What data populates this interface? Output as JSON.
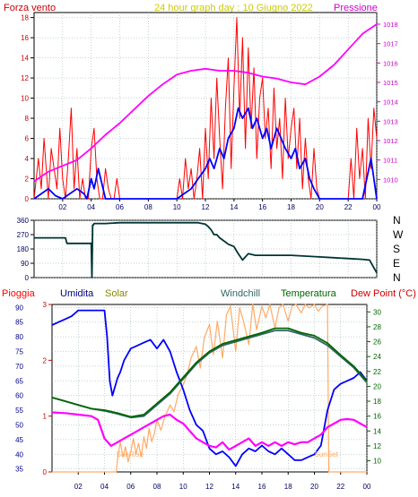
{
  "colors": {
    "background": "#ffffff",
    "plot_background": "#ffffff",
    "wind": "#ff0000",
    "wind_avg": "#0000ff",
    "pressure": "#ff00ff",
    "direction": "#003333",
    "humidity": "#0000ff",
    "solar": "#ffaa66",
    "windchill": "#336666",
    "temperature": "#006600",
    "dewpoint": "#ff00ff",
    "rain": "#ff3333",
    "grid": "#8ca8a8",
    "frame": "#000000"
  },
  "chart_data": [
    {
      "type": "line",
      "title": "24 hour graph day : 10 Giugno 2022",
      "left_label": "Forza vento",
      "right_label": "Pressione",
      "x_ticks": [
        "02",
        "04",
        "06",
        "08",
        "10",
        "12",
        "14",
        "16",
        "18",
        "20",
        "22",
        "00"
      ],
      "x_range": [
        0,
        24
      ],
      "ylim_left": [
        0,
        18.5
      ],
      "y_ticks_left": [
        0,
        2,
        4,
        6,
        8,
        10,
        12,
        14,
        16,
        18
      ],
      "ylim_right": [
        1009,
        1018.6
      ],
      "y_ticks_right": [
        1010,
        1011,
        1012,
        1013,
        1014,
        1015,
        1016,
        1017,
        1018
      ],
      "grid": true,
      "series": [
        {
          "key": "wind_gust",
          "x": [
            0,
            0.3,
            0.5,
            0.7,
            0.9,
            1.0,
            1.2,
            1.4,
            1.6,
            1.8,
            2.0,
            2.2,
            2.4,
            2.6,
            2.8,
            3.0,
            3.2,
            3.4,
            3.6,
            3.8,
            4.0,
            4.2,
            4.4,
            4.6,
            4.8,
            5.0,
            5.2,
            5.4,
            5.6,
            5.8,
            6.0,
            6.2,
            6.5,
            7.0,
            7.5,
            8.0,
            8.5,
            9.0,
            9.5,
            10.0,
            10.2,
            10.4,
            10.6,
            10.8,
            11.0,
            11.2,
            11.4,
            11.6,
            11.8,
            12.0,
            12.2,
            12.4,
            12.6,
            12.8,
            13.0,
            13.2,
            13.4,
            13.6,
            13.8,
            14.0,
            14.2,
            14.4,
            14.6,
            14.8,
            15.0,
            15.2,
            15.4,
            15.6,
            15.8,
            16.0,
            16.2,
            16.4,
            16.6,
            16.8,
            17.0,
            17.2,
            17.4,
            17.6,
            17.8,
            18.0,
            18.2,
            18.4,
            18.6,
            18.8,
            19.0,
            19.2,
            19.4,
            19.6,
            19.8,
            20.0,
            20.5,
            21.0,
            21.5,
            22.0,
            22.2,
            22.4,
            22.6,
            22.8,
            23.0,
            23.2,
            23.4,
            23.6,
            23.8,
            24.0
          ],
          "y": [
            0,
            4,
            1,
            6,
            2,
            0,
            5,
            3,
            1,
            7,
            2,
            0,
            4,
            9,
            1,
            5,
            0,
            2,
            0,
            0,
            5,
            7,
            2,
            0,
            0,
            3,
            1,
            0,
            0,
            2,
            0,
            0,
            0,
            0,
            0,
            0,
            0,
            0,
            0,
            0,
            2,
            0,
            4,
            1,
            3,
            0,
            2,
            5,
            0,
            7,
            2,
            10,
            4,
            12,
            6,
            1,
            9,
            14,
            3,
            11,
            18,
            8,
            16,
            5,
            15,
            7,
            13,
            4,
            10,
            12,
            6,
            9,
            3,
            11,
            5,
            8,
            2,
            10,
            4,
            7,
            9,
            3,
            8,
            1,
            6,
            2,
            0,
            5,
            1,
            0,
            0,
            0,
            0,
            0,
            4,
            0,
            7,
            2,
            5,
            0,
            8,
            3,
            9,
            6
          ]
        },
        {
          "key": "wind_avg",
          "x": [
            0,
            0.5,
            1.0,
            1.5,
            2.0,
            2.5,
            3.0,
            3.5,
            3.7,
            4.0,
            4.2,
            4.5,
            5.0,
            5.5,
            6.0,
            7.0,
            8.0,
            9.0,
            10.0,
            10.5,
            11.0,
            11.5,
            12.0,
            12.3,
            12.6,
            13.0,
            13.3,
            13.6,
            14.0,
            14.3,
            14.6,
            15.0,
            15.3,
            15.6,
            16.0,
            16.3,
            16.6,
            17.0,
            17.3,
            17.6,
            18.0,
            18.3,
            18.6,
            19.0,
            19.3,
            19.6,
            20.0,
            20.5,
            21.0,
            21.5,
            22.0,
            22.5,
            23.0,
            23.3,
            23.6,
            24.0
          ],
          "y": [
            0,
            0.5,
            1,
            0.3,
            0,
            0.5,
            1,
            0.5,
            0,
            2,
            1,
            3,
            0,
            0,
            0,
            0,
            0,
            0,
            0,
            0.5,
            1,
            2,
            3,
            4,
            3,
            5,
            4,
            6,
            7,
            9,
            8,
            9,
            7,
            8,
            6,
            7,
            5,
            7,
            6,
            5,
            4,
            5,
            3,
            4,
            2,
            1,
            0,
            0,
            0,
            0,
            0,
            0,
            0,
            2,
            4,
            0
          ]
        },
        {
          "key": "pressure",
          "x": [
            0,
            1,
            2,
            3,
            4,
            5,
            6,
            7,
            8,
            9,
            10,
            11,
            12,
            13,
            14,
            15,
            16,
            17,
            18,
            19,
            20,
            21,
            22,
            23,
            24
          ],
          "y": [
            1009.9,
            1010.4,
            1010.7,
            1011.0,
            1011.6,
            1012.3,
            1012.9,
            1013.6,
            1014.3,
            1014.9,
            1015.4,
            1015.6,
            1015.7,
            1015.6,
            1015.6,
            1015.5,
            1015.3,
            1015.2,
            1015.0,
            1014.9,
            1015.3,
            1015.9,
            1016.7,
            1017.5,
            1018.0
          ]
        }
      ]
    },
    {
      "type": "line",
      "right_labels": [
        "N",
        "W",
        "S",
        "E",
        "N"
      ],
      "ylim": [
        0,
        360
      ],
      "y_ticks": [
        0,
        90,
        180,
        270,
        360
      ],
      "x_range": [
        0,
        24
      ],
      "grid": true,
      "series": [
        {
          "key": "wind_direction",
          "x": [
            0,
            2.2,
            2.3,
            4.0,
            4.05,
            4.1,
            4.15,
            4.2,
            5.0,
            6.0,
            7.0,
            8.0,
            9.0,
            10.0,
            11.0,
            11.5,
            12.0,
            12.2,
            12.4,
            12.6,
            12.8,
            13.0,
            13.3,
            13.6,
            14.0,
            14.3,
            14.6,
            15.0,
            15.5,
            16.0,
            17.0,
            18.0,
            19.0,
            20.0,
            21.0,
            22.0,
            23.0,
            23.5,
            24.0
          ],
          "y": [
            250,
            250,
            215,
            215,
            0,
            330,
            330,
            340,
            340,
            345,
            345,
            345,
            345,
            345,
            345,
            345,
            335,
            320,
            300,
            270,
            270,
            250,
            230,
            210,
            195,
            150,
            110,
            150,
            140,
            140,
            140,
            140,
            135,
            130,
            125,
            120,
            115,
            110,
            30
          ]
        }
      ]
    },
    {
      "type": "line",
      "labels": {
        "rain": "Pioggia",
        "humidity": "Umidita",
        "solar": "Solar",
        "windchill": "Windchill",
        "temperature": "Temperatura",
        "dewpoint": "Dew Point (°C)"
      },
      "sunrise": "SunRise",
      "sunset": "SunSet",
      "ylim_left": [
        34,
        91
      ],
      "y_ticks_left": [
        35,
        40,
        45,
        50,
        55,
        60,
        65,
        70,
        75,
        80,
        85,
        90
      ],
      "ylim_rain": [
        0,
        3
      ],
      "y_ticks_rain": [
        0,
        1,
        2,
        3
      ],
      "ylim_right": [
        8.5,
        31
      ],
      "y_ticks_right": [
        10,
        12,
        14,
        16,
        18,
        20,
        22,
        24,
        26,
        28,
        30
      ],
      "x_ticks": [
        "02",
        "04",
        "06",
        "08",
        "10",
        "12",
        "14",
        "16",
        "18",
        "20",
        "22",
        "00"
      ],
      "x_range": [
        0,
        24
      ],
      "grid": true,
      "series": [
        {
          "key": "humidity",
          "x": [
            0,
            0.5,
            1,
            1.5,
            2,
            2.5,
            3,
            3.5,
            4.0,
            4.2,
            4.4,
            4.6,
            4.8,
            5.0,
            5.2,
            5.5,
            6.0,
            6.5,
            7.0,
            7.5,
            8.0,
            8.5,
            9.0,
            9.5,
            10.0,
            10.5,
            11.0,
            11.5,
            12.0,
            12.5,
            13.0,
            13.5,
            14.0,
            14.5,
            15.0,
            15.5,
            16.0,
            16.5,
            17.0,
            17.5,
            18.0,
            18.5,
            19.0,
            19.5,
            20.0,
            20.5,
            21.0,
            21.5,
            22.0,
            22.5,
            23.0,
            23.5,
            24.0
          ],
          "y": [
            84,
            85,
            86,
            87,
            89,
            89,
            89,
            89,
            89,
            80,
            65,
            60,
            63,
            66,
            68,
            72,
            76,
            77,
            78,
            79,
            76,
            79,
            75,
            68,
            62,
            55,
            50,
            48,
            42,
            40,
            41,
            39,
            36,
            40,
            42,
            41,
            43,
            41,
            40,
            42,
            40,
            38,
            38,
            39,
            40,
            43,
            55,
            62,
            64,
            65,
            66,
            68,
            65
          ]
        },
        {
          "key": "solar",
          "x": [
            0,
            4.9,
            5.0,
            5.2,
            5.4,
            5.6,
            5.8,
            6.0,
            6.2,
            6.4,
            6.6,
            6.8,
            7.0,
            7.2,
            7.4,
            7.6,
            7.8,
            8.0,
            8.3,
            8.6,
            9.0,
            9.3,
            9.6,
            10.0,
            10.3,
            10.6,
            11.0,
            11.3,
            11.6,
            12.0,
            12.3,
            12.6,
            13.0,
            13.3,
            13.6,
            14.0,
            14.3,
            14.6,
            15.0,
            15.3,
            15.6,
            16.0,
            16.3,
            16.6,
            17.0,
            17.3,
            17.6,
            18.0,
            18.3,
            18.6,
            19.0,
            19.3,
            19.6,
            20.0,
            20.3,
            20.6,
            21.0,
            21.1,
            24.0
          ],
          "y": [
            0,
            0,
            80,
            180,
            90,
            150,
            60,
            120,
            200,
            110,
            170,
            90,
            210,
            140,
            260,
            180,
            230,
            310,
            250,
            330,
            400,
            360,
            460,
            520,
            580,
            680,
            750,
            620,
            800,
            880,
            700,
            900,
            680,
            940,
            990,
            720,
            980,
            900,
            760,
            1000,
            850,
            990,
            920,
            1000,
            860,
            980,
            1000,
            900,
            990,
            1000,
            950,
            1000,
            980,
            1000,
            960,
            990,
            1000,
            0,
            0
          ]
        },
        {
          "key": "windchill",
          "x": [
            0,
            1,
            2,
            3,
            4,
            5,
            6,
            7,
            8,
            9,
            10,
            11,
            12,
            13,
            14,
            15,
            16,
            17,
            18,
            19,
            20,
            21,
            22,
            23,
            24
          ],
          "y": [
            18.5,
            18.0,
            17.5,
            17.0,
            16.7,
            16.3,
            15.8,
            16.0,
            17.5,
            19.0,
            21.0,
            23.0,
            24.5,
            25.5,
            26.0,
            26.5,
            27.0,
            27.5,
            27.5,
            27.0,
            26.5,
            25.5,
            24.0,
            22.5,
            20.5
          ]
        },
        {
          "key": "temperature",
          "x": [
            0,
            1,
            2,
            3,
            4,
            5,
            6,
            7,
            8,
            9,
            10,
            11,
            12,
            13,
            14,
            15,
            16,
            17,
            18,
            19,
            20,
            21,
            22,
            23,
            24
          ],
          "y": [
            18.5,
            18.0,
            17.5,
            17.0,
            16.8,
            16.4,
            15.9,
            16.2,
            17.7,
            19.2,
            21.2,
            23.2,
            24.7,
            25.7,
            26.2,
            26.7,
            27.2,
            27.8,
            27.8,
            27.2,
            26.8,
            25.8,
            24.2,
            22.7,
            20.7
          ]
        },
        {
          "key": "dewpoint",
          "x": [
            0,
            1,
            2,
            3,
            3.5,
            4.0,
            4.5,
            5.0,
            5.5,
            6.0,
            6.5,
            7.0,
            7.5,
            8.0,
            8.5,
            9.0,
            9.5,
            10.0,
            10.5,
            11.0,
            11.5,
            12.0,
            12.5,
            13.0,
            13.5,
            14.0,
            14.5,
            15.0,
            15.5,
            16.0,
            16.5,
            17.0,
            17.5,
            18.0,
            18.5,
            19.0,
            19.5,
            20.0,
            20.5,
            21.0,
            21.5,
            22.0,
            22.5,
            23.0,
            23.5,
            24.0
          ],
          "y": [
            16.5,
            16.4,
            16.2,
            16.0,
            15.5,
            13.0,
            12.0,
            12.5,
            13.0,
            13.5,
            14.0,
            14.5,
            15.0,
            15.5,
            16.0,
            16.2,
            15.5,
            15.0,
            14.0,
            13.0,
            12.5,
            12.0,
            11.8,
            12.5,
            11.5,
            12.0,
            12.5,
            13.0,
            12.0,
            12.5,
            12.0,
            12.5,
            12.0,
            12.5,
            12.2,
            12.5,
            12.5,
            13.0,
            13.5,
            14.5,
            15.0,
            15.5,
            15.6,
            15.5,
            15.0,
            14.5
          ]
        }
      ]
    }
  ]
}
